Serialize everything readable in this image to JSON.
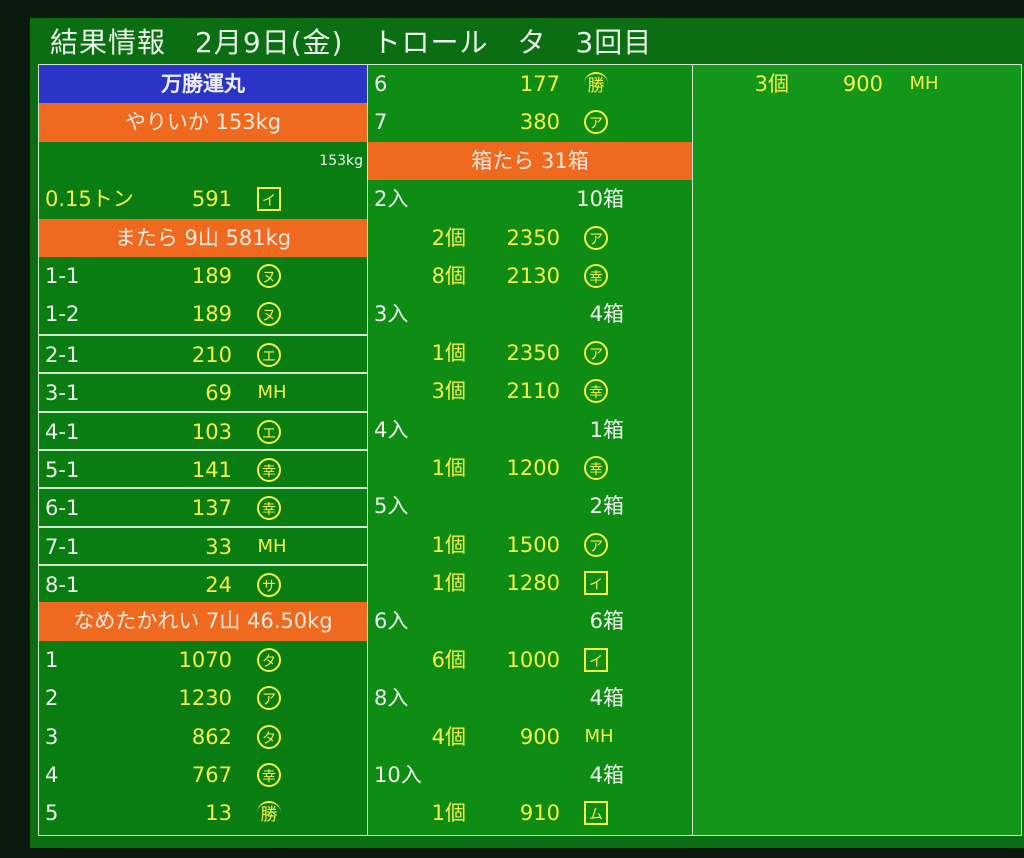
{
  "title": "結果情報　2月9日(金)　トロール　タ　3回目",
  "colors": {
    "background": "#0b6e12",
    "header_orange": "#ef6a1f",
    "header_blue": "#2a34c6",
    "value_yellow": "#f4f14a",
    "label_white": "#eef6ee"
  },
  "left": [
    {
      "type": "header",
      "style": "blue",
      "text": "万勝運丸"
    },
    {
      "type": "header",
      "style": "orange",
      "text": "やりいか 153kg"
    },
    {
      "type": "subtotal",
      "text": "153kg"
    },
    {
      "type": "item",
      "label": "0.15トン",
      "label_yellow": true,
      "value": "591",
      "mark": {
        "kind": "box",
        "text": "イ"
      }
    },
    {
      "type": "header",
      "style": "orange",
      "text": "またら 9山 581kg"
    },
    {
      "type": "item",
      "label": "1-1",
      "value": "189",
      "mark": {
        "kind": "circle",
        "text": "ヌ"
      }
    },
    {
      "type": "item",
      "label": "1-2",
      "value": "189",
      "mark": {
        "kind": "circle",
        "text": "ヌ"
      }
    },
    {
      "type": "item",
      "sep": true,
      "label": "2-1",
      "value": "210",
      "mark": {
        "kind": "circle",
        "text": "エ"
      }
    },
    {
      "type": "item",
      "sep": true,
      "label": "3-1",
      "value": "69",
      "mark": {
        "kind": "plain",
        "text": "MH"
      }
    },
    {
      "type": "item",
      "sep": true,
      "label": "4-1",
      "value": "103",
      "mark": {
        "kind": "circle",
        "text": "エ"
      }
    },
    {
      "type": "item",
      "sep": true,
      "label": "5-1",
      "value": "141",
      "mark": {
        "kind": "circle",
        "text": "幸"
      }
    },
    {
      "type": "item",
      "sep": true,
      "label": "6-1",
      "value": "137",
      "mark": {
        "kind": "circle",
        "text": "幸"
      }
    },
    {
      "type": "item",
      "sep": true,
      "label": "7-1",
      "value": "33",
      "mark": {
        "kind": "plain",
        "text": "MH"
      }
    },
    {
      "type": "item",
      "sep": true,
      "label": "8-1",
      "value": "24",
      "mark": {
        "kind": "circle",
        "text": "サ"
      }
    },
    {
      "type": "header",
      "style": "orange",
      "text": "なめたかれい 7山 46.50kg"
    },
    {
      "type": "item",
      "label": "1",
      "value": "1070",
      "mark": {
        "kind": "circle",
        "text": "タ"
      }
    },
    {
      "type": "item",
      "label": "2",
      "value": "1230",
      "mark": {
        "kind": "circle",
        "text": "ア"
      }
    },
    {
      "type": "item",
      "label": "3",
      "value": "862",
      "mark": {
        "kind": "circle",
        "text": "タ"
      }
    },
    {
      "type": "item",
      "label": "4",
      "value": "767",
      "mark": {
        "kind": "circle",
        "text": "幸"
      }
    },
    {
      "type": "item",
      "label": "5",
      "value": "13",
      "mark": {
        "kind": "roof",
        "text": "勝"
      }
    }
  ],
  "middle": [
    {
      "type": "item",
      "label": "6",
      "value": "177",
      "mark": {
        "kind": "roof",
        "text": "勝"
      }
    },
    {
      "type": "item",
      "label": "7",
      "value": "380",
      "mark": {
        "kind": "circle",
        "text": "ア"
      }
    },
    {
      "type": "header",
      "style": "orange",
      "text": "箱たら 31箱"
    },
    {
      "type": "lot",
      "label": "2入",
      "boxes": "10箱"
    },
    {
      "type": "piece",
      "count": "2個",
      "value": "2350",
      "mark": {
        "kind": "circle",
        "text": "ア"
      }
    },
    {
      "type": "piece",
      "count": "8個",
      "value": "2130",
      "mark": {
        "kind": "circle",
        "text": "幸"
      }
    },
    {
      "type": "lot",
      "label": "3入",
      "boxes": "4箱"
    },
    {
      "type": "piece",
      "count": "1個",
      "value": "2350",
      "mark": {
        "kind": "circle",
        "text": "ア"
      }
    },
    {
      "type": "piece",
      "count": "3個",
      "value": "2110",
      "mark": {
        "kind": "circle",
        "text": "幸"
      }
    },
    {
      "type": "lot",
      "label": "4入",
      "boxes": "1箱"
    },
    {
      "type": "piece",
      "count": "1個",
      "value": "1200",
      "mark": {
        "kind": "circle",
        "text": "幸"
      }
    },
    {
      "type": "lot",
      "label": "5入",
      "boxes": "2箱"
    },
    {
      "type": "piece",
      "count": "1個",
      "value": "1500",
      "mark": {
        "kind": "circle",
        "text": "ア"
      }
    },
    {
      "type": "piece",
      "count": "1個",
      "value": "1280",
      "mark": {
        "kind": "box",
        "text": "イ"
      }
    },
    {
      "type": "lot",
      "label": "6入",
      "boxes": "6箱"
    },
    {
      "type": "piece",
      "count": "6個",
      "value": "1000",
      "mark": {
        "kind": "box",
        "text": "イ"
      }
    },
    {
      "type": "lot",
      "label": "8入",
      "boxes": "4箱"
    },
    {
      "type": "piece",
      "count": "4個",
      "value": "900",
      "mark": {
        "kind": "plain",
        "text": "MH"
      }
    },
    {
      "type": "lot",
      "label": "10入",
      "boxes": "4箱"
    },
    {
      "type": "piece",
      "count": "1個",
      "value": "910",
      "mark": {
        "kind": "box",
        "text": "ム"
      }
    }
  ],
  "right": [
    {
      "type": "piece",
      "count": "3個",
      "value": "900",
      "mark": {
        "kind": "plain",
        "text": "MH"
      }
    }
  ]
}
